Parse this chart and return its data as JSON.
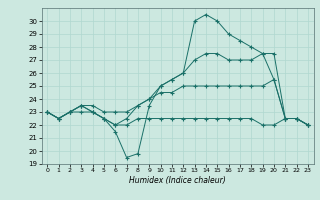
{
  "xlabel": "Humidex (Indice chaleur)",
  "xlim": [
    -0.5,
    23.5
  ],
  "ylim": [
    19,
    31
  ],
  "yticks": [
    19,
    20,
    21,
    22,
    23,
    24,
    25,
    26,
    27,
    28,
    29,
    30
  ],
  "xticks": [
    0,
    1,
    2,
    3,
    4,
    5,
    6,
    7,
    8,
    9,
    10,
    11,
    12,
    13,
    14,
    15,
    16,
    17,
    18,
    19,
    20,
    21,
    22,
    23
  ],
  "bg_color": "#cce8e0",
  "grid_color": "#b0d8d0",
  "line_color": "#1a7068",
  "lines": [
    {
      "x": [
        0,
        1,
        2,
        3,
        4,
        5,
        6,
        7,
        8,
        9,
        10,
        11,
        12,
        13,
        14,
        15,
        16,
        17,
        18,
        19,
        20,
        21,
        22,
        23
      ],
      "y": [
        23,
        22.5,
        23,
        23.5,
        23,
        22.5,
        21.5,
        19.5,
        19.8,
        23.5,
        25,
        25.5,
        26,
        30,
        30.5,
        30,
        29,
        28.5,
        28,
        27.5,
        25.5,
        22.5,
        22.5,
        22
      ]
    },
    {
      "x": [
        0,
        1,
        2,
        3,
        4,
        5,
        6,
        7,
        8,
        9,
        10,
        11,
        12,
        13,
        14,
        15,
        16,
        17,
        18,
        19,
        20,
        21,
        22,
        23
      ],
      "y": [
        23,
        22.5,
        23,
        23.5,
        23,
        22.5,
        22,
        22.5,
        23.5,
        24,
        25,
        25.5,
        26,
        27,
        27.5,
        27.5,
        27,
        27,
        27,
        27.5,
        27.5,
        22.5,
        22.5,
        22
      ]
    },
    {
      "x": [
        0,
        1,
        2,
        3,
        4,
        5,
        6,
        7,
        8,
        9,
        10,
        11,
        12,
        13,
        14,
        15,
        16,
        17,
        18,
        19,
        20,
        21,
        22,
        23
      ],
      "y": [
        23,
        22.5,
        23,
        23.5,
        23.5,
        23,
        23,
        23,
        23.5,
        24,
        24.5,
        24.5,
        25,
        25,
        25,
        25,
        25,
        25,
        25,
        25,
        25.5,
        22.5,
        22.5,
        22
      ]
    },
    {
      "x": [
        0,
        1,
        2,
        3,
        4,
        5,
        6,
        7,
        8,
        9,
        10,
        11,
        12,
        13,
        14,
        15,
        16,
        17,
        18,
        19,
        20,
        21,
        22,
        23
      ],
      "y": [
        23,
        22.5,
        23,
        23,
        23,
        22.5,
        22,
        22,
        22.5,
        22.5,
        22.5,
        22.5,
        22.5,
        22.5,
        22.5,
        22.5,
        22.5,
        22.5,
        22.5,
        22,
        22,
        22.5,
        22.5,
        22
      ]
    }
  ]
}
